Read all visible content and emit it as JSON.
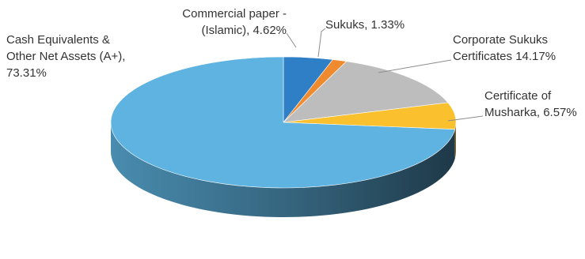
{
  "chart_data": {
    "type": "pie",
    "style": "3d",
    "title": "",
    "slices": [
      {
        "name": "Commercial paper - (Islamic)",
        "value": 4.62,
        "display": "4.62%",
        "color": "#2f7fc6",
        "label_lines": [
          "Commercial paper -",
          "(Islamic), 4.62%"
        ]
      },
      {
        "name": "Sukuks",
        "value": 1.33,
        "display": "1.33%",
        "color": "#f08a2e",
        "label_lines": [
          "Sukuks, 1.33%"
        ]
      },
      {
        "name": "Corporate Sukuks Certificates",
        "value": 14.17,
        "display": "14.17%",
        "color": "#bdbdbd",
        "label_lines": [
          "Corporate Sukuks",
          "Certificates 14.17%"
        ]
      },
      {
        "name": "Certificate of Musharka",
        "value": 6.57,
        "display": "6.57%",
        "color": "#fbc02d",
        "label_lines": [
          "Certificate of",
          "Musharka, 6.57%"
        ]
      },
      {
        "name": "Cash Equivalents & Other Net Assets (A+)",
        "value": 73.31,
        "display": "73.31%",
        "color": "#5eb3e0",
        "label_lines": [
          "Cash Equivalents &",
          "Other Net Assets (A+),",
          "73.31%"
        ]
      }
    ],
    "legend": "none"
  }
}
